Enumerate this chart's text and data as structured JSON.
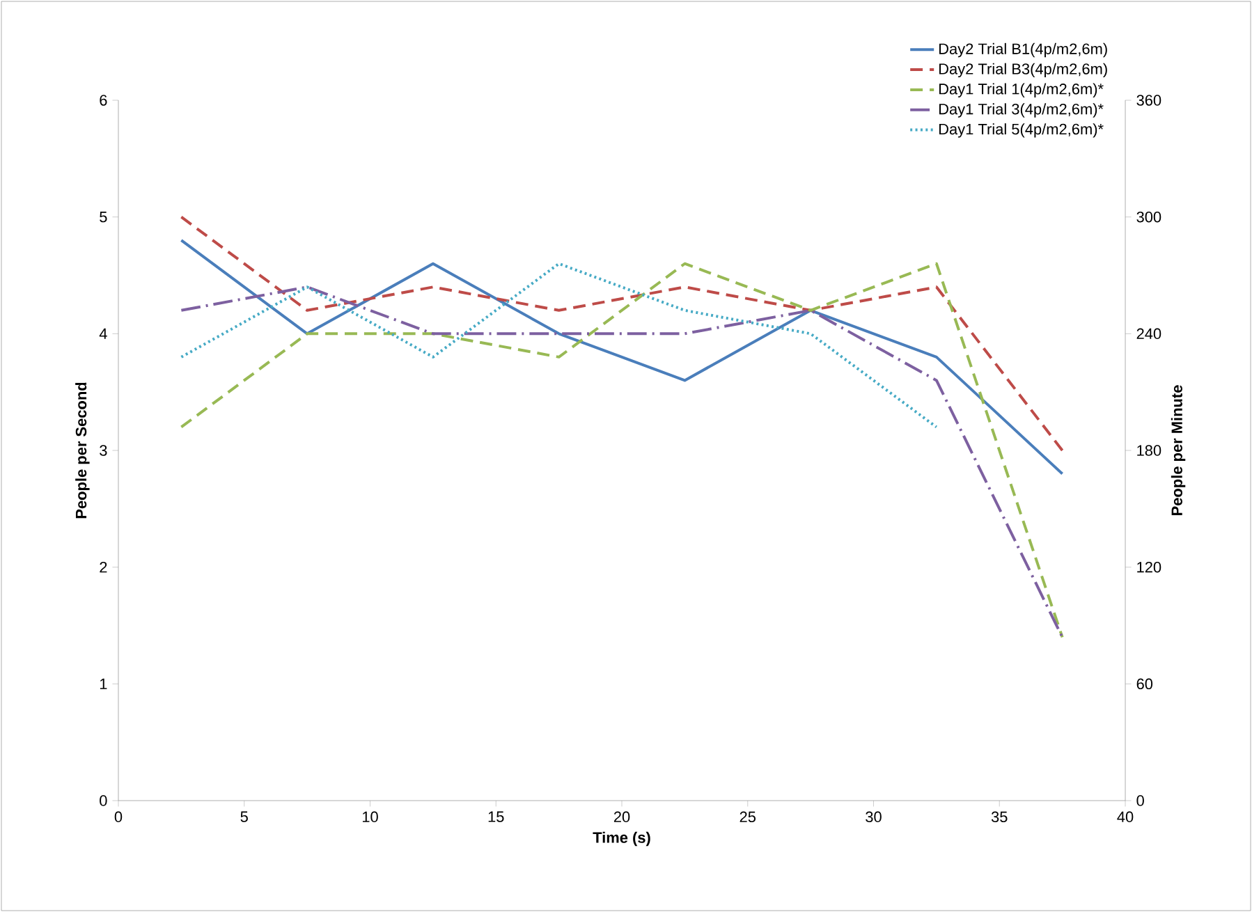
{
  "chart_data": {
    "type": "line",
    "xlabel": "Time (s)",
    "ylabel": "People per Second",
    "y2label": "People per Minute",
    "x": [
      2.5,
      7.5,
      12.5,
      17.5,
      22.5,
      27.5,
      32.5,
      37.5
    ],
    "xlim": [
      0,
      40
    ],
    "xticks": [
      0,
      5,
      10,
      15,
      20,
      25,
      30,
      35,
      40
    ],
    "ylim": [
      0,
      6
    ],
    "yticks": [
      0,
      1,
      2,
      3,
      4,
      5,
      6
    ],
    "y2lim": [
      0,
      360
    ],
    "y2ticks": [
      0,
      60,
      120,
      180,
      240,
      300,
      360
    ],
    "legend": "top right",
    "grid": false,
    "marker": "none",
    "series": [
      {
        "name": "Day2 Trial B1(4p/m2,6m)",
        "color": "#4a7ebb",
        "line_style": "solid",
        "values": [
          4.8,
          4.0,
          4.6,
          4.0,
          3.6,
          4.2,
          3.8,
          2.8
        ]
      },
      {
        "name": "Day2 Trial B3(4p/m2,6m)",
        "color": "#be4b48",
        "line_style": "dashed",
        "values": [
          5.0,
          4.2,
          4.4,
          4.2,
          4.4,
          4.2,
          4.4,
          3.0
        ]
      },
      {
        "name": "Day1 Trial 1(4p/m2,6m)*",
        "color": "#98b954",
        "line_style": "dashed",
        "values": [
          3.2,
          4.0,
          4.0,
          3.8,
          4.6,
          4.2,
          4.6,
          1.4
        ]
      },
      {
        "name": "Day1 Trial 3(4p/m2,6m)*",
        "color": "#7d60a0",
        "line_style": "dashdot",
        "values": [
          4.2,
          4.4,
          4.0,
          4.0,
          4.0,
          4.2,
          3.6,
          1.4
        ]
      },
      {
        "name": "Day1 Trial 5(4p/m2,6m)*",
        "color": "#46aac5",
        "line_style": "dotted",
        "values": [
          3.8,
          4.4,
          3.8,
          4.6,
          4.2,
          4.0,
          3.2,
          null
        ]
      }
    ]
  }
}
